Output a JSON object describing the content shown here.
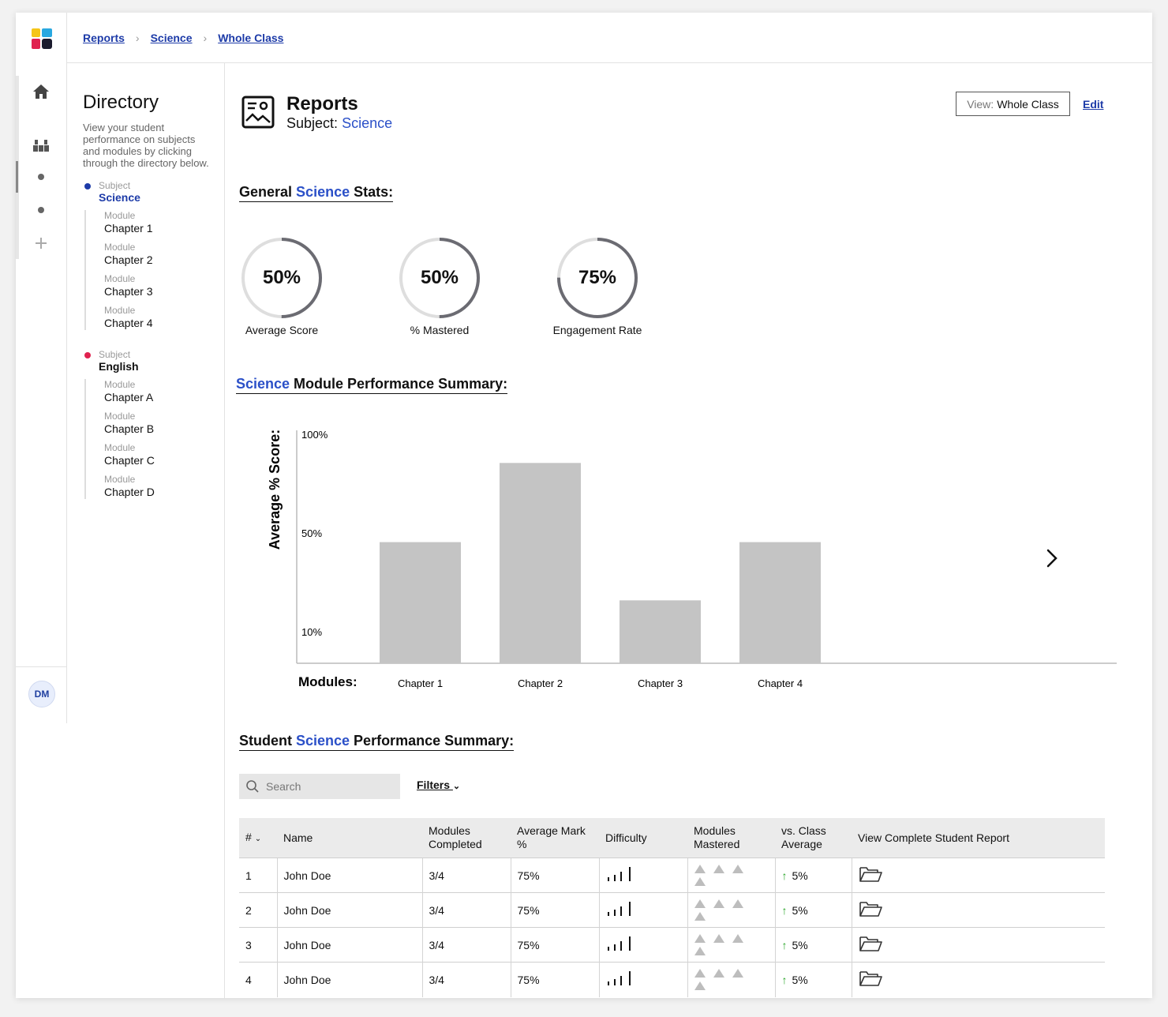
{
  "breadcrumb": [
    "Reports",
    "Science",
    "Whole Class"
  ],
  "user": {
    "initials": "DM"
  },
  "directory": {
    "title": "Directory",
    "description": "View your student performance on subjects and modules by clicking through the directory below.",
    "subjects": [
      {
        "label": "Subject",
        "name": "Science",
        "color": "#1d3ba8",
        "modules": [
          {
            "label": "Module",
            "name": "Chapter 1"
          },
          {
            "label": "Module",
            "name": "Chapter 2"
          },
          {
            "label": "Module",
            "name": "Chapter 3"
          },
          {
            "label": "Module",
            "name": "Chapter 4"
          }
        ]
      },
      {
        "label": "Subject",
        "name": "English",
        "color": "#e0224f",
        "modules": [
          {
            "label": "Module",
            "name": "Chapter A"
          },
          {
            "label": "Module",
            "name": "Chapter B"
          },
          {
            "label": "Module",
            "name": "Chapter C"
          },
          {
            "label": "Module",
            "name": "Chapter D"
          }
        ]
      }
    ]
  },
  "report": {
    "title": "Reports",
    "subject_label": "Subject:",
    "subject": "Science",
    "view_prefix": "View:",
    "view_value": "Whole Class",
    "edit": "Edit"
  },
  "stats": {
    "title_pre": "General ",
    "title_subject": "Science",
    "title_post": " Stats:",
    "items": [
      {
        "value": "50%",
        "fraction": 0.5,
        "label": "Average Score"
      },
      {
        "value": "50%",
        "fraction": 0.5,
        "label": "% Mastered"
      },
      {
        "value": "75%",
        "fraction": 0.75,
        "label": "Engagement Rate"
      }
    ]
  },
  "module_summary": {
    "title_subject": "Science",
    "title_post": " Module Performance Summary:"
  },
  "chart_data": {
    "type": "bar",
    "title": "Science Module Performance Summary:",
    "ylabel": "Average % Score:",
    "xlabel": "Modules:",
    "yticks": [
      "100%",
      "50%",
      "10%"
    ],
    "categories": [
      "Chapter 1",
      "Chapter 2",
      "Chapter 3",
      "Chapter 4"
    ],
    "values": [
      52,
      86,
      27,
      52
    ],
    "ylim": [
      0,
      100
    ],
    "color": "#c4c4c4"
  },
  "students": {
    "title_pre": "Student ",
    "title_subject": "Science",
    "title_post": " Performance Summary:",
    "search_placeholder": "Search",
    "filters_label": "Filters",
    "columns": [
      "#",
      "Name",
      "Modules Completed",
      "Average Mark %",
      "Difficulty",
      "Modules Mastered",
      "vs. Class Average",
      "View Complete Student Report"
    ],
    "rows": [
      {
        "num": "1",
        "name": "John Doe",
        "completed": "3/4",
        "mark": "75%",
        "vs": "5%"
      },
      {
        "num": "2",
        "name": "John Doe",
        "completed": "3/4",
        "mark": "75%",
        "vs": "5%"
      },
      {
        "num": "3",
        "name": "John Doe",
        "completed": "3/4",
        "mark": "75%",
        "vs": "5%"
      },
      {
        "num": "4",
        "name": "John Doe",
        "completed": "3/4",
        "mark": "75%",
        "vs": "5%"
      }
    ]
  }
}
